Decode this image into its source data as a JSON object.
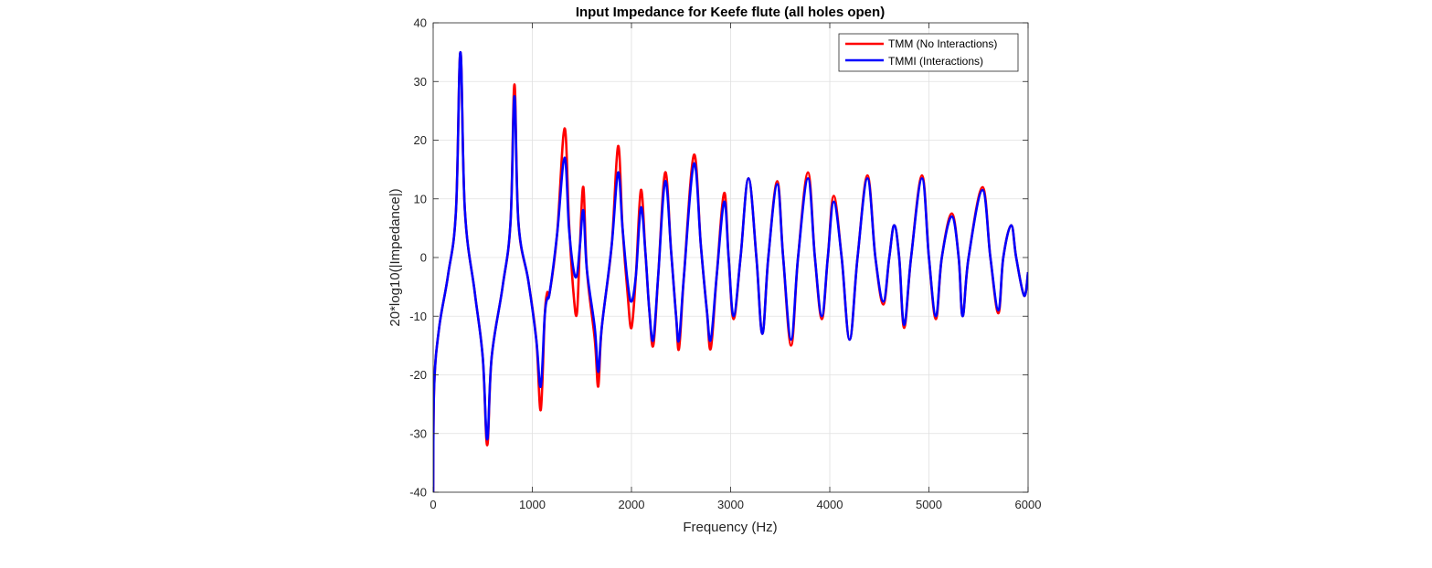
{
  "chart_data": {
    "type": "line",
    "title": "Input Impedance for Keefe flute (all holes open)",
    "xlabel": "Frequency (Hz)",
    "ylabel": "20*log10(|Impedance|)",
    "xlim": [
      0,
      6000
    ],
    "ylim": [
      -40,
      40
    ],
    "xticks": [
      0,
      1000,
      2000,
      3000,
      4000,
      5000,
      6000
    ],
    "yticks": [
      -40,
      -30,
      -20,
      -10,
      0,
      10,
      20,
      30,
      40
    ],
    "grid": true,
    "legend_position": "top-right",
    "series": [
      {
        "name": "TMM (No Interactions)",
        "color": "#ff0000",
        "points": [
          [
            0,
            -40
          ],
          [
            10,
            -22
          ],
          [
            60,
            -12
          ],
          [
            150,
            -3
          ],
          [
            230,
            8
          ],
          [
            275,
            35
          ],
          [
            320,
            8
          ],
          [
            420,
            -6
          ],
          [
            500,
            -17
          ],
          [
            545,
            -32
          ],
          [
            590,
            -17
          ],
          [
            700,
            -5
          ],
          [
            780,
            6
          ],
          [
            820,
            29.5
          ],
          [
            860,
            6
          ],
          [
            960,
            -4
          ],
          [
            1040,
            -14
          ],
          [
            1085,
            -26
          ],
          [
            1125,
            -10
          ],
          [
            1150,
            -6
          ],
          [
            1175,
            -6
          ],
          [
            1250,
            4
          ],
          [
            1325,
            22
          ],
          [
            1370,
            6
          ],
          [
            1415,
            -6
          ],
          [
            1450,
            -9.5
          ],
          [
            1480,
            2
          ],
          [
            1515,
            12
          ],
          [
            1550,
            -2
          ],
          [
            1630,
            -14
          ],
          [
            1665,
            -22
          ],
          [
            1700,
            -12
          ],
          [
            1800,
            2
          ],
          [
            1865,
            19
          ],
          [
            1910,
            5
          ],
          [
            1960,
            -6
          ],
          [
            2000,
            -12
          ],
          [
            2045,
            -3
          ],
          [
            2095,
            11.5
          ],
          [
            2140,
            1
          ],
          [
            2180,
            -9
          ],
          [
            2220,
            -15
          ],
          [
            2270,
            -3
          ],
          [
            2340,
            14.5
          ],
          [
            2400,
            1
          ],
          [
            2450,
            -10
          ],
          [
            2480,
            -15.5
          ],
          [
            2530,
            -3
          ],
          [
            2630,
            17.5
          ],
          [
            2700,
            2
          ],
          [
            2760,
            -9
          ],
          [
            2800,
            -15.5
          ],
          [
            2860,
            -3
          ],
          [
            2935,
            11
          ],
          [
            2980,
            0
          ],
          [
            3030,
            -10.5
          ],
          [
            3100,
            0
          ],
          [
            3180,
            13.5
          ],
          [
            3260,
            0
          ],
          [
            3320,
            -13
          ],
          [
            3380,
            0
          ],
          [
            3470,
            13
          ],
          [
            3530,
            0
          ],
          [
            3610,
            -15
          ],
          [
            3680,
            0
          ],
          [
            3780,
            14.5
          ],
          [
            3850,
            0
          ],
          [
            3920,
            -10.5
          ],
          [
            3980,
            0
          ],
          [
            4040,
            10.5
          ],
          [
            4120,
            0
          ],
          [
            4200,
            -14
          ],
          [
            4280,
            0
          ],
          [
            4380,
            14
          ],
          [
            4460,
            0
          ],
          [
            4540,
            -8
          ],
          [
            4600,
            0
          ],
          [
            4650,
            5.5
          ],
          [
            4700,
            0
          ],
          [
            4750,
            -12
          ],
          [
            4820,
            0
          ],
          [
            4930,
            14
          ],
          [
            5000,
            0
          ],
          [
            5070,
            -10.5
          ],
          [
            5130,
            0
          ],
          [
            5230,
            7.5
          ],
          [
            5300,
            0
          ],
          [
            5340,
            -10
          ],
          [
            5400,
            0
          ],
          [
            5540,
            12
          ],
          [
            5620,
            0
          ],
          [
            5700,
            -9.5
          ],
          [
            5750,
            0
          ],
          [
            5830,
            5.5
          ],
          [
            5880,
            0
          ],
          [
            5960,
            -6.5
          ],
          [
            6000,
            -2.5
          ]
        ]
      },
      {
        "name": "TMMI (Interactions)",
        "color": "#0000ff",
        "points": [
          [
            0,
            -40
          ],
          [
            10,
            -22
          ],
          [
            60,
            -12
          ],
          [
            150,
            -3
          ],
          [
            230,
            8
          ],
          [
            275,
            35
          ],
          [
            320,
            8
          ],
          [
            420,
            -6
          ],
          [
            500,
            -17
          ],
          [
            545,
            -31
          ],
          [
            590,
            -17
          ],
          [
            700,
            -5
          ],
          [
            780,
            6
          ],
          [
            820,
            27.5
          ],
          [
            860,
            6
          ],
          [
            960,
            -4
          ],
          [
            1040,
            -14
          ],
          [
            1085,
            -22
          ],
          [
            1125,
            -10
          ],
          [
            1150,
            -7
          ],
          [
            1175,
            -6
          ],
          [
            1250,
            4
          ],
          [
            1325,
            17
          ],
          [
            1370,
            5
          ],
          [
            1415,
            -2
          ],
          [
            1450,
            -3
          ],
          [
            1480,
            2
          ],
          [
            1515,
            8
          ],
          [
            1550,
            -2
          ],
          [
            1630,
            -12
          ],
          [
            1665,
            -19.5
          ],
          [
            1700,
            -12
          ],
          [
            1800,
            2
          ],
          [
            1865,
            14.5
          ],
          [
            1910,
            5
          ],
          [
            1960,
            -4
          ],
          [
            2000,
            -7.5
          ],
          [
            2045,
            -3
          ],
          [
            2095,
            8.5
          ],
          [
            2140,
            1
          ],
          [
            2180,
            -9
          ],
          [
            2220,
            -14
          ],
          [
            2270,
            -3
          ],
          [
            2340,
            13
          ],
          [
            2400,
            1
          ],
          [
            2450,
            -10
          ],
          [
            2480,
            -14
          ],
          [
            2530,
            -3
          ],
          [
            2630,
            16
          ],
          [
            2700,
            2
          ],
          [
            2760,
            -9
          ],
          [
            2800,
            -14
          ],
          [
            2860,
            -3
          ],
          [
            2935,
            9.5
          ],
          [
            2980,
            0
          ],
          [
            3030,
            -10
          ],
          [
            3100,
            0
          ],
          [
            3180,
            13.5
          ],
          [
            3260,
            0
          ],
          [
            3320,
            -13
          ],
          [
            3380,
            0
          ],
          [
            3470,
            12.5
          ],
          [
            3530,
            0
          ],
          [
            3610,
            -14
          ],
          [
            3680,
            0
          ],
          [
            3780,
            13.5
          ],
          [
            3850,
            0
          ],
          [
            3920,
            -10
          ],
          [
            3980,
            0
          ],
          [
            4040,
            9.5
          ],
          [
            4120,
            0
          ],
          [
            4200,
            -14
          ],
          [
            4280,
            0
          ],
          [
            4380,
            13.5
          ],
          [
            4460,
            0
          ],
          [
            4540,
            -7.5
          ],
          [
            4600,
            0
          ],
          [
            4650,
            5.5
          ],
          [
            4700,
            0
          ],
          [
            4750,
            -11.5
          ],
          [
            4820,
            0
          ],
          [
            4930,
            13.5
          ],
          [
            5000,
            0
          ],
          [
            5070,
            -10
          ],
          [
            5130,
            0
          ],
          [
            5230,
            7
          ],
          [
            5300,
            0
          ],
          [
            5340,
            -10
          ],
          [
            5400,
            0
          ],
          [
            5540,
            11.5
          ],
          [
            5620,
            0
          ],
          [
            5700,
            -9
          ],
          [
            5750,
            0
          ],
          [
            5830,
            5.5
          ],
          [
            5880,
            0
          ],
          [
            5960,
            -6.5
          ],
          [
            6000,
            -2.5
          ]
        ]
      }
    ]
  }
}
